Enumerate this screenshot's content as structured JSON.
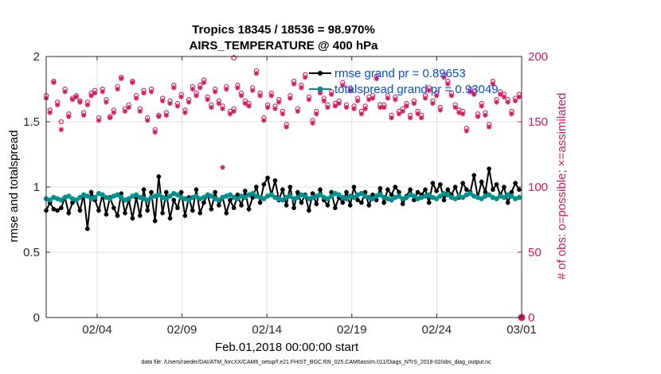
{
  "chart_data": {
    "type": "line",
    "title": "Tropics 18345 / 18536 = 98.970%",
    "subtitle": "AIRS_TEMPERATURE @ 400 hPa",
    "xlabel": "Feb.01,2018 00:00:00 start",
    "ylabel": "rmse and totalspread",
    "y2label": "# of obs: o=possible; ×=assimilated",
    "footnote": "data file: /Users/raeder/DAI/ATM_forcXX/CAM6_setup/f.e21.FHIST_BGC.f09_025.CAM6assim.011/Diags_NTrS_2018-02/obs_diag_output.nc",
    "xlim": [
      1,
      29
    ],
    "ylim": [
      0,
      2
    ],
    "y2lim": [
      0,
      200
    ],
    "x_ticks": [
      {
        "value": 4,
        "label": "02/04"
      },
      {
        "value": 9,
        "label": "02/09"
      },
      {
        "value": 14,
        "label": "02/14"
      },
      {
        "value": 19,
        "label": "02/19"
      },
      {
        "value": 24,
        "label": "02/24"
      },
      {
        "value": 29,
        "label": "03/01"
      }
    ],
    "y_ticks": [
      "0",
      "0.5",
      "1",
      "1.5",
      "2"
    ],
    "y2_ticks": [
      "0",
      "50",
      "100",
      "150",
      "200"
    ],
    "grid": true,
    "legend_position": "top-right",
    "colors": {
      "rmse": "#000000",
      "spread": "#009090",
      "obs": "#d6195c",
      "legend_text": "#0049ff"
    },
    "series": [
      {
        "name": "rmse grand pr = 0.89653",
        "axis": "left",
        "values": [
          0.82,
          0.88,
          0.83,
          0.82,
          0.84,
          0.92,
          0.8,
          0.88,
          0.9,
          0.82,
          0.94,
          0.68,
          0.96,
          0.9,
          0.82,
          0.94,
          0.79,
          0.92,
          0.84,
          0.78,
          0.95,
          0.8,
          0.9,
          0.76,
          0.92,
          0.78,
          0.98,
          0.82,
          0.96,
          0.74,
          1.08,
          0.8,
          0.96,
          0.76,
          0.9,
          0.84,
          0.96,
          0.78,
          0.92,
          0.82,
          0.98,
          0.8,
          0.88,
          0.94,
          0.83,
          0.96,
          0.86,
          0.92,
          0.8,
          0.9,
          0.84,
          0.94,
          0.86,
          0.97,
          0.83,
          0.92,
          1.0,
          0.88,
          1.02,
          1.07,
          0.94,
          1.05,
          0.9,
          0.98,
          0.86,
          1.0,
          0.84,
          0.96,
          0.88,
          0.94,
          0.82,
          0.95,
          0.87,
          0.98,
          0.9,
          0.86,
          0.96,
          0.84,
          0.92,
          0.88,
          0.96,
          0.86,
          1.0,
          0.9,
          0.88,
          0.96,
          0.86,
          0.94,
          0.9,
          0.99,
          0.88,
          0.98,
          0.94,
          1.0,
          0.96,
          0.87,
          0.93,
          0.98,
          0.9,
          0.96,
          0.94,
          0.98,
          0.88,
          1.03,
          0.97,
          1.02,
          0.9,
          0.98,
          0.94,
          1.0,
          0.92,
          1.03,
          0.98,
          0.96,
          1.09,
          0.92,
          1.04,
          0.96,
          1.14,
          0.98,
          1.02,
          0.94,
          1.0,
          0.88,
          0.96,
          1.03,
          0.98
        ]
      },
      {
        "name": "totalspread grand pr = 0.93049",
        "axis": "left",
        "values": [
          0.91,
          0.9,
          0.92,
          0.91,
          0.9,
          0.92,
          0.93,
          0.91,
          0.9,
          0.92,
          0.94,
          0.93,
          0.91,
          0.92,
          0.95,
          0.94,
          0.92,
          0.91,
          0.93,
          0.94,
          0.92,
          0.9,
          0.91,
          0.93,
          0.94,
          0.92,
          0.91,
          0.9,
          0.92,
          0.93,
          0.94,
          0.92,
          0.91,
          0.93,
          0.95,
          0.94,
          0.92,
          0.91,
          0.9,
          0.92,
          0.93,
          0.91,
          0.92,
          0.94,
          0.93,
          0.91,
          0.9,
          0.92,
          0.93,
          0.94,
          0.92,
          0.91,
          0.93,
          0.92,
          0.94,
          0.95,
          0.93,
          0.92,
          0.91,
          0.93,
          0.94,
          0.92,
          0.91,
          0.9,
          0.92,
          0.93,
          0.91,
          0.92,
          0.94,
          0.93,
          0.91,
          0.92,
          0.93,
          0.94,
          0.92,
          0.91,
          0.93,
          0.95,
          0.94,
          0.92,
          0.91,
          0.93,
          0.92,
          0.94,
          0.95,
          0.93,
          0.92,
          0.91,
          0.93,
          0.94,
          0.92,
          0.91,
          0.9,
          0.92,
          0.93,
          0.91,
          0.92,
          0.94,
          0.93,
          0.91,
          0.92,
          0.93,
          0.94,
          0.92,
          0.91,
          0.93,
          0.95,
          0.94,
          0.92,
          0.91,
          0.93,
          0.92,
          0.94,
          0.95,
          0.93,
          0.92,
          0.91,
          0.93,
          0.94,
          0.92,
          0.91,
          0.93,
          0.92,
          0.94,
          0.93,
          0.91,
          0.92
        ]
      },
      {
        "name": "obs possible",
        "axis": "right",
        "values": [
          170,
          159,
          181,
          165,
          150,
          175,
          156,
          168,
          170,
          166,
          157,
          165,
          172,
          174,
          153,
          175,
          167,
          154,
          159,
          177,
          184,
          160,
          163,
          181,
          170,
          160,
          174,
          153,
          175,
          144,
          155,
          168,
          157,
          166,
          178,
          164,
          171,
          159,
          167,
          177,
          172,
          178,
          182,
          169,
          163,
          175,
          166,
          162,
          177,
          158,
          160,
          178,
          172,
          166,
          164,
          176,
          189,
          172,
          153,
          163,
          172,
          162,
          167,
          158,
          148,
          170,
          181,
          160,
          178,
          186,
          169,
          151,
          158,
          174,
          168,
          163,
          173,
          164,
          166,
          180,
          163,
          176,
          162,
          168,
          158,
          162,
          169,
          170,
          185,
          163,
          163,
          170,
          155,
          169,
          158,
          160,
          164,
          155,
          166,
          158,
          155,
          170,
          176,
          166,
          172,
          161,
          186,
          181,
          172,
          163,
          159,
          158,
          145,
          175,
          173,
          156,
          164,
          157,
          148,
          181,
          167,
          173,
          171,
          167,
          158,
          168,
          171
        ]
      },
      {
        "name": "obs assimilated",
        "axis": "right",
        "values": [
          168,
          157,
          180,
          163,
          144,
          173,
          154,
          167,
          169,
          165,
          155,
          163,
          170,
          172,
          151,
          173,
          165,
          153,
          157,
          175,
          183,
          158,
          161,
          180,
          168,
          158,
          172,
          151,
          173,
          142,
          154,
          166,
          155,
          164,
          176,
          162,
          169,
          157,
          165,
          175,
          170,
          176,
          180,
          167,
          161,
          173,
          164,
          160,
          175,
          156,
          158,
          176,
          170,
          164,
          162,
          174,
          187,
          170,
          151,
          161,
          170,
          160,
          165,
          156,
          146,
          168,
          179,
          158,
          176,
          184,
          167,
          149,
          156,
          172,
          166,
          161,
          171,
          162,
          164,
          178,
          161,
          174,
          160,
          166,
          156,
          160,
          167,
          168,
          183,
          161,
          161,
          168,
          153,
          167,
          156,
          158,
          162,
          153,
          164,
          156,
          153,
          168,
          174,
          164,
          170,
          159,
          184,
          179,
          170,
          161,
          157,
          156,
          143,
          173,
          171,
          154,
          162,
          155,
          146,
          179,
          165,
          171,
          169,
          165,
          156,
          166,
          169
        ]
      }
    ],
    "annotations": [
      {
        "label": "outlier possible",
        "value": 199
      },
      {
        "label": "outlier assimilated",
        "value": 115
      },
      {
        "label": "end marker",
        "value": 0
      }
    ]
  }
}
